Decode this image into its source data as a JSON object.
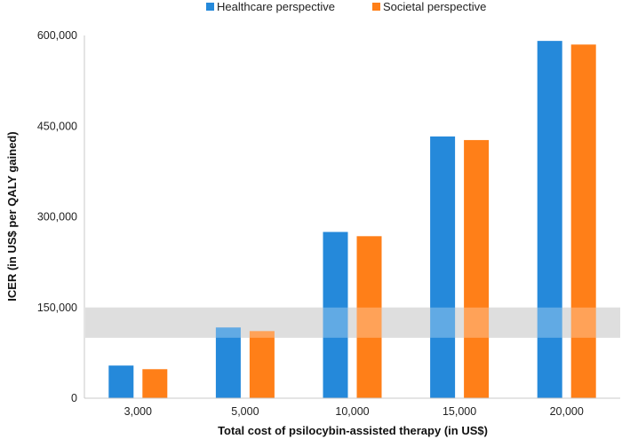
{
  "chart_data": {
    "type": "bar",
    "categories": [
      "3,000",
      "5,000",
      "10,000",
      "15,000",
      "20,000"
    ],
    "series": [
      {
        "name": "Healthcare perspective",
        "color": "#2589DA",
        "values": [
          54000,
          117000,
          275000,
          433000,
          591000
        ]
      },
      {
        "name": "Societal perspective",
        "color": "#FF7F18",
        "values": [
          48000,
          111000,
          268000,
          427000,
          585000
        ]
      }
    ],
    "xlabel": "Total cost of psilocybin-assisted therapy (in US$)",
    "ylabel": "ICER (in US$ per QALY gained)",
    "ylim": [
      0,
      600000
    ],
    "yticks": [
      0,
      150000,
      300000,
      450000,
      600000
    ],
    "ytick_labels": [
      "0",
      "150,000",
      "300,000",
      "450,000",
      "600,000"
    ],
    "threshold_band": {
      "from": 100000,
      "to": 150000,
      "color": "#BDBDBD"
    },
    "legend_position": "top-center",
    "grid": false
  }
}
